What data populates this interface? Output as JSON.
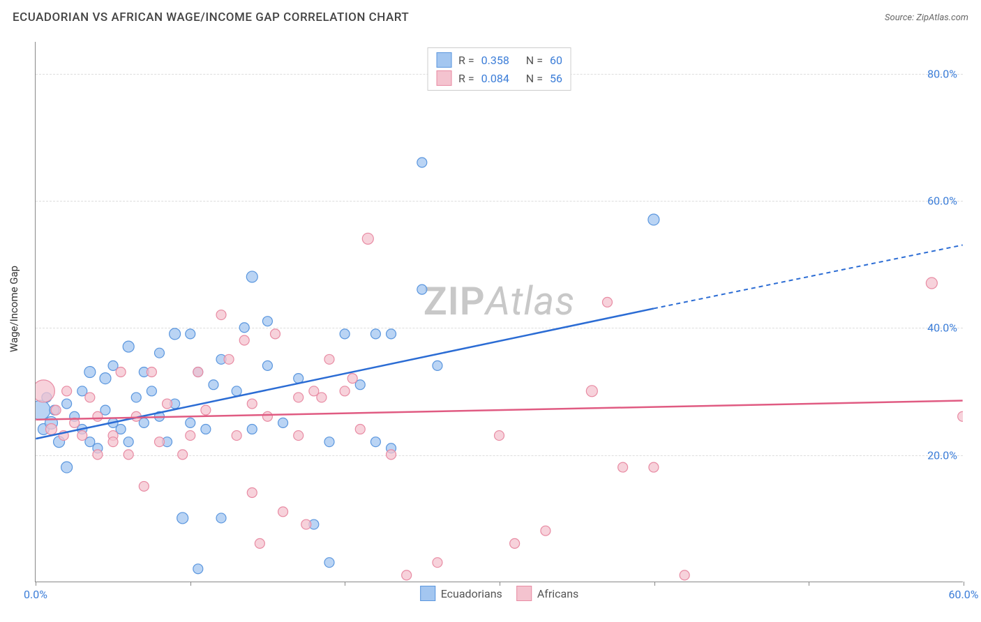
{
  "header": {
    "title": "ECUADORIAN VS AFRICAN WAGE/INCOME GAP CORRELATION CHART",
    "source": "Source: ZipAtlas.com"
  },
  "chart": {
    "type": "scatter",
    "ylabel": "Wage/Income Gap",
    "watermark_bold": "ZIP",
    "watermark_rest": "Atlas",
    "xlim": [
      0,
      60
    ],
    "ylim": [
      0,
      85
    ],
    "x_ticks": [
      0,
      10,
      20,
      30,
      40,
      50,
      60
    ],
    "x_tick_labels": [
      "0.0%",
      "",
      "",
      "",
      "",
      "",
      "60.0%"
    ],
    "y_ticks": [
      20,
      40,
      60,
      80
    ],
    "y_tick_labels": [
      "20.0%",
      "40.0%",
      "60.0%",
      "80.0%"
    ],
    "grid_color": "#dddddd",
    "axis_color": "#888888",
    "background_color": "#ffffff",
    "series": [
      {
        "name": "Ecuadorians",
        "color_fill": "#a3c6f0",
        "color_stroke": "#5a96de",
        "line_color": "#2b6cd4",
        "R": "0.358",
        "N": "60",
        "trend": {
          "x1": 0,
          "y1": 22.5,
          "x2": 40,
          "y2": 43,
          "x2_ext": 60,
          "y2_ext": 53
        },
        "points": [
          {
            "x": 0.3,
            "y": 27,
            "r": 14
          },
          {
            "x": 0.5,
            "y": 24,
            "r": 8
          },
          {
            "x": 0.7,
            "y": 29,
            "r": 7
          },
          {
            "x": 1,
            "y": 25,
            "r": 9
          },
          {
            "x": 1.2,
            "y": 27,
            "r": 7
          },
          {
            "x": 1.5,
            "y": 22,
            "r": 8
          },
          {
            "x": 2,
            "y": 28,
            "r": 7
          },
          {
            "x": 2,
            "y": 18,
            "r": 8
          },
          {
            "x": 2.5,
            "y": 26,
            "r": 7
          },
          {
            "x": 3,
            "y": 24,
            "r": 7
          },
          {
            "x": 3,
            "y": 30,
            "r": 7
          },
          {
            "x": 3.5,
            "y": 22,
            "r": 7
          },
          {
            "x": 3.5,
            "y": 33,
            "r": 8
          },
          {
            "x": 4,
            "y": 21,
            "r": 7
          },
          {
            "x": 4.5,
            "y": 27,
            "r": 7
          },
          {
            "x": 4.5,
            "y": 32,
            "r": 8
          },
          {
            "x": 5,
            "y": 34,
            "r": 7
          },
          {
            "x": 5,
            "y": 25,
            "r": 7
          },
          {
            "x": 5.5,
            "y": 24,
            "r": 7
          },
          {
            "x": 6,
            "y": 37,
            "r": 8
          },
          {
            "x": 6,
            "y": 22,
            "r": 7
          },
          {
            "x": 6.5,
            "y": 29,
            "r": 7
          },
          {
            "x": 7,
            "y": 33,
            "r": 7
          },
          {
            "x": 7,
            "y": 25,
            "r": 7
          },
          {
            "x": 7.5,
            "y": 30,
            "r": 7
          },
          {
            "x": 8,
            "y": 36,
            "r": 7
          },
          {
            "x": 8,
            "y": 26,
            "r": 7
          },
          {
            "x": 8.5,
            "y": 22,
            "r": 7
          },
          {
            "x": 9,
            "y": 39,
            "r": 8
          },
          {
            "x": 9,
            "y": 28,
            "r": 7
          },
          {
            "x": 9.5,
            "y": 10,
            "r": 8
          },
          {
            "x": 10,
            "y": 39,
            "r": 7
          },
          {
            "x": 10,
            "y": 25,
            "r": 7
          },
          {
            "x": 10.5,
            "y": 33,
            "r": 7
          },
          {
            "x": 11,
            "y": 24,
            "r": 7
          },
          {
            "x": 11.5,
            "y": 31,
            "r": 7
          },
          {
            "x": 12,
            "y": 35,
            "r": 7
          },
          {
            "x": 12,
            "y": 10,
            "r": 7
          },
          {
            "x": 13,
            "y": 30,
            "r": 7
          },
          {
            "x": 13.5,
            "y": 40,
            "r": 7
          },
          {
            "x": 14,
            "y": 24,
            "r": 7
          },
          {
            "x": 14,
            "y": 48,
            "r": 8
          },
          {
            "x": 15,
            "y": 34,
            "r": 7
          },
          {
            "x": 15,
            "y": 41,
            "r": 7
          },
          {
            "x": 16,
            "y": 25,
            "r": 7
          },
          {
            "x": 17,
            "y": 32,
            "r": 7
          },
          {
            "x": 18,
            "y": 9,
            "r": 7
          },
          {
            "x": 19,
            "y": 22,
            "r": 7
          },
          {
            "x": 19,
            "y": 3,
            "r": 7
          },
          {
            "x": 20,
            "y": 39,
            "r": 7
          },
          {
            "x": 21,
            "y": 31,
            "r": 7
          },
          {
            "x": 22,
            "y": 39,
            "r": 7
          },
          {
            "x": 22,
            "y": 22,
            "r": 7
          },
          {
            "x": 23,
            "y": 39,
            "r": 7
          },
          {
            "x": 23,
            "y": 21,
            "r": 7
          },
          {
            "x": 25,
            "y": 46,
            "r": 7
          },
          {
            "x": 25,
            "y": 66,
            "r": 7
          },
          {
            "x": 26,
            "y": 34,
            "r": 7
          },
          {
            "x": 10.5,
            "y": 2,
            "r": 7
          },
          {
            "x": 40,
            "y": 57,
            "r": 8
          }
        ]
      },
      {
        "name": "Africans",
        "color_fill": "#f4c3cf",
        "color_stroke": "#e88ba3",
        "line_color": "#e05b82",
        "R": "0.084",
        "N": "56",
        "trend": {
          "x1": 0,
          "y1": 25.5,
          "x2": 60,
          "y2": 28.5,
          "x2_ext": 60,
          "y2_ext": 28.5
        },
        "points": [
          {
            "x": 0.5,
            "y": 30,
            "r": 16
          },
          {
            "x": 1,
            "y": 24,
            "r": 8
          },
          {
            "x": 1.3,
            "y": 27,
            "r": 7
          },
          {
            "x": 1.8,
            "y": 23,
            "r": 7
          },
          {
            "x": 2,
            "y": 30,
            "r": 7
          },
          {
            "x": 2.5,
            "y": 25,
            "r": 7
          },
          {
            "x": 3,
            "y": 23,
            "r": 7
          },
          {
            "x": 3.5,
            "y": 29,
            "r": 7
          },
          {
            "x": 4,
            "y": 20,
            "r": 7
          },
          {
            "x": 4,
            "y": 26,
            "r": 7
          },
          {
            "x": 5,
            "y": 23,
            "r": 7
          },
          {
            "x": 5,
            "y": 22,
            "r": 7
          },
          {
            "x": 5.5,
            "y": 33,
            "r": 7
          },
          {
            "x": 6,
            "y": 20,
            "r": 7
          },
          {
            "x": 6.5,
            "y": 26,
            "r": 7
          },
          {
            "x": 7,
            "y": 15,
            "r": 7
          },
          {
            "x": 7.5,
            "y": 33,
            "r": 7
          },
          {
            "x": 8,
            "y": 22,
            "r": 7
          },
          {
            "x": 8.5,
            "y": 28,
            "r": 7
          },
          {
            "x": 9.5,
            "y": 20,
            "r": 7
          },
          {
            "x": 10,
            "y": 23,
            "r": 7
          },
          {
            "x": 10.5,
            "y": 33,
            "r": 7
          },
          {
            "x": 11,
            "y": 27,
            "r": 7
          },
          {
            "x": 12,
            "y": 42,
            "r": 7
          },
          {
            "x": 12.5,
            "y": 35,
            "r": 7
          },
          {
            "x": 13,
            "y": 23,
            "r": 7
          },
          {
            "x": 13.5,
            "y": 38,
            "r": 7
          },
          {
            "x": 14,
            "y": 28,
            "r": 7
          },
          {
            "x": 14,
            "y": 14,
            "r": 7
          },
          {
            "x": 15,
            "y": 26,
            "r": 7
          },
          {
            "x": 15.5,
            "y": 39,
            "r": 7
          },
          {
            "x": 16,
            "y": 11,
            "r": 7
          },
          {
            "x": 17,
            "y": 29,
            "r": 7
          },
          {
            "x": 17,
            "y": 23,
            "r": 7
          },
          {
            "x": 17.5,
            "y": 9,
            "r": 7
          },
          {
            "x": 18,
            "y": 30,
            "r": 7
          },
          {
            "x": 18.5,
            "y": 29,
            "r": 7
          },
          {
            "x": 19,
            "y": 35,
            "r": 7
          },
          {
            "x": 20,
            "y": 30,
            "r": 7
          },
          {
            "x": 20.5,
            "y": 32,
            "r": 7
          },
          {
            "x": 21,
            "y": 24,
            "r": 7
          },
          {
            "x": 21.5,
            "y": 54,
            "r": 8
          },
          {
            "x": 23,
            "y": 20,
            "r": 7
          },
          {
            "x": 24,
            "y": 1,
            "r": 7
          },
          {
            "x": 26,
            "y": 3,
            "r": 7
          },
          {
            "x": 30,
            "y": 23,
            "r": 7
          },
          {
            "x": 31,
            "y": 6,
            "r": 7
          },
          {
            "x": 33,
            "y": 8,
            "r": 7
          },
          {
            "x": 36,
            "y": 30,
            "r": 8
          },
          {
            "x": 37,
            "y": 44,
            "r": 7
          },
          {
            "x": 38,
            "y": 18,
            "r": 7
          },
          {
            "x": 40,
            "y": 18,
            "r": 7
          },
          {
            "x": 42,
            "y": 1,
            "r": 7
          },
          {
            "x": 58,
            "y": 47,
            "r": 8
          },
          {
            "x": 60,
            "y": 26,
            "r": 7
          },
          {
            "x": 14.5,
            "y": 6,
            "r": 7
          }
        ]
      }
    ],
    "legend_top": [
      {
        "swatch_fill": "#a3c6f0",
        "swatch_stroke": "#5a96de",
        "r_label": "R =",
        "r_val": "0.358",
        "n_label": "N =",
        "n_val": "60"
      },
      {
        "swatch_fill": "#f4c3cf",
        "swatch_stroke": "#e88ba3",
        "r_label": "R =",
        "r_val": "0.084",
        "n_label": "N =",
        "n_val": "56"
      }
    ],
    "legend_bottom": [
      {
        "swatch_fill": "#a3c6f0",
        "swatch_stroke": "#5a96de",
        "label": "Ecuadorians"
      },
      {
        "swatch_fill": "#f4c3cf",
        "swatch_stroke": "#e88ba3",
        "label": "Africans"
      }
    ]
  }
}
